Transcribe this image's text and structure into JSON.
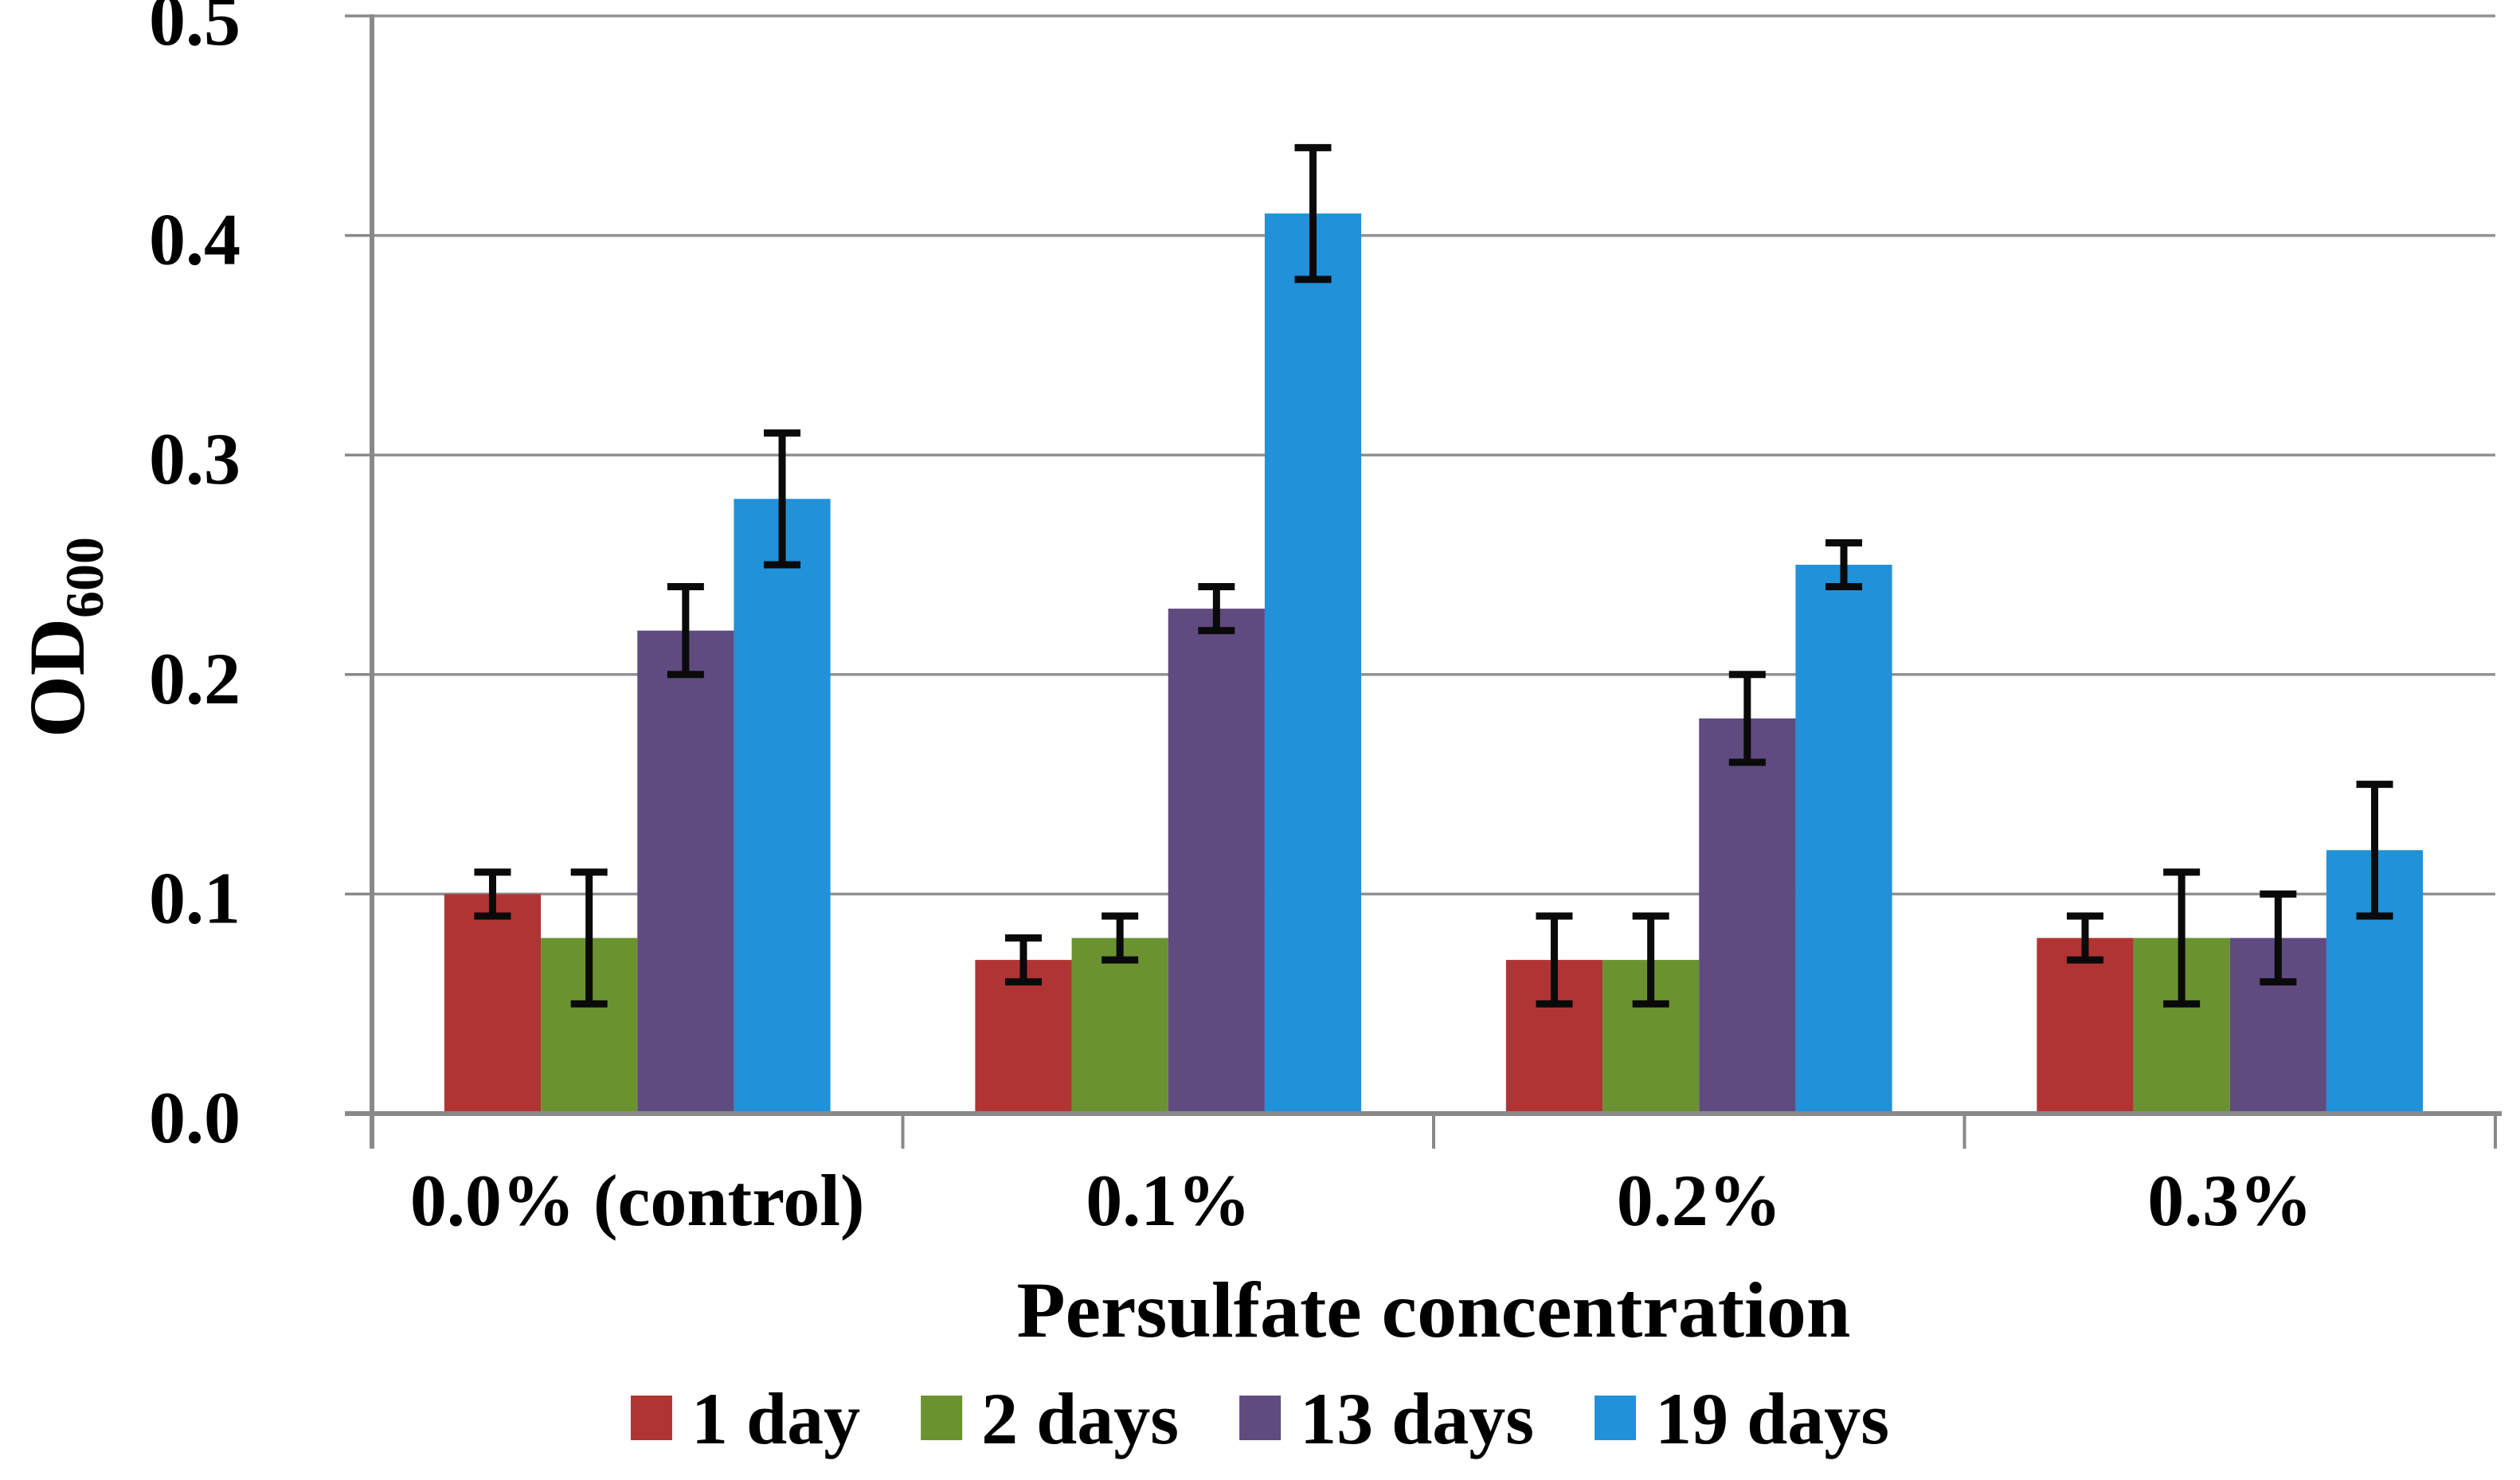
{
  "chart_data": {
    "type": "bar",
    "title": "",
    "xlabel": "Persulfate concentration",
    "ylabel": "OD",
    "ylabel_subscript": "600",
    "categories": [
      "0.0% (control)",
      "0.1%",
      "0.2%",
      "0.3%"
    ],
    "series": [
      {
        "name": "1 day",
        "color": "#B13434",
        "values": [
          0.1,
          0.07,
          0.07,
          0.08
        ],
        "errors": [
          0.01,
          0.01,
          0.02,
          0.01
        ]
      },
      {
        "name": "2 days",
        "color": "#6B9230",
        "values": [
          0.08,
          0.08,
          0.07,
          0.08
        ],
        "errors": [
          0.03,
          0.01,
          0.02,
          0.03
        ]
      },
      {
        "name": "13 days",
        "color": "#5F4B7F",
        "values": [
          0.22,
          0.23,
          0.18,
          0.08
        ],
        "errors": [
          0.02,
          0.01,
          0.02,
          0.02
        ]
      },
      {
        "name": "19 days",
        "color": "#2191D9",
        "values": [
          0.28,
          0.41,
          0.25,
          0.12
        ],
        "errors": [
          0.03,
          0.03,
          0.01,
          0.03
        ]
      }
    ],
    "y_ticks": [
      "0.0",
      "0.1",
      "0.2",
      "0.3",
      "0.4",
      "0.5"
    ],
    "ylim": [
      0.0,
      0.5
    ],
    "y_tick_step": 0.1,
    "grid": true,
    "legend_position": "bottom",
    "colors": {
      "gridline": "#919191",
      "axis": "#898989",
      "error_bar": "#0a0a0a",
      "text": "#000000",
      "background": "#ffffff"
    }
  }
}
